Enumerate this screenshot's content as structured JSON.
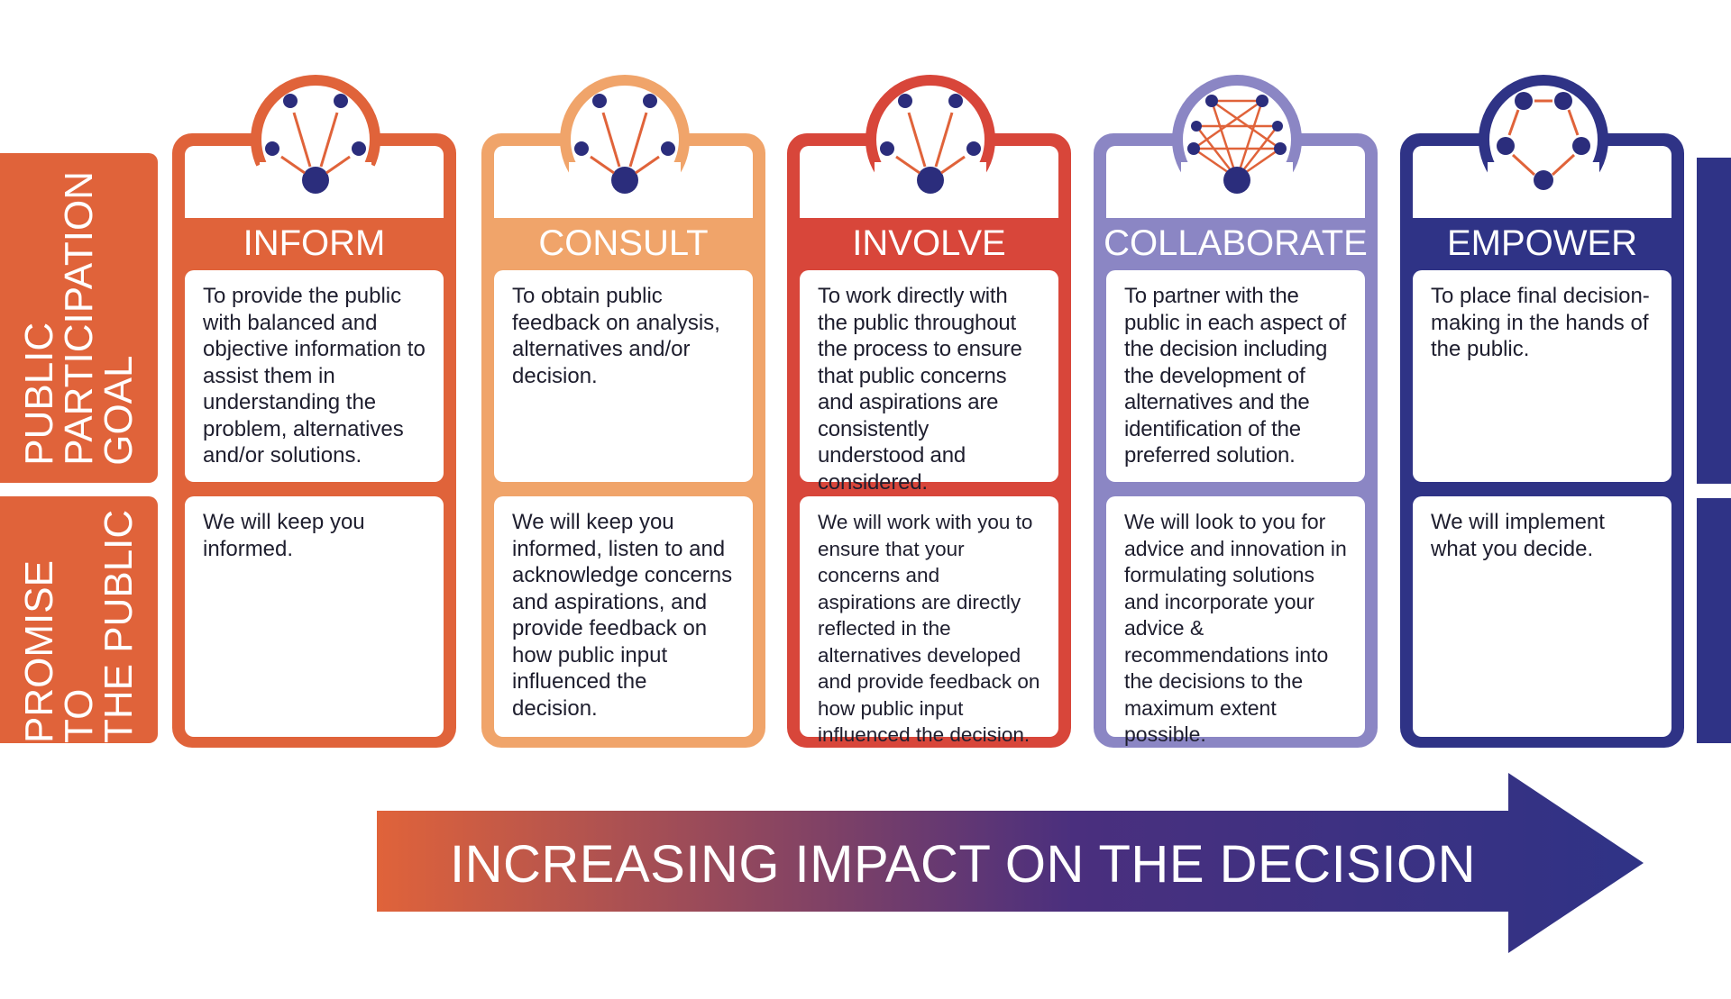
{
  "side_labels": {
    "goal_line1": "PUBLIC",
    "goal_line2": "PARTICIPATION",
    "goal_line3": "GOAL",
    "promise_line1": "PROMISE TO",
    "promise_line2": "THE PUBLIC"
  },
  "columns": [
    {
      "title": "INFORM",
      "color": "#e0633a",
      "goal_text": "To provide the public with balanced and objective information to assist them in understanding the problem, alternatives and/or solutions.",
      "promise_text": "We will keep you informed."
    },
    {
      "title": "CONSULT",
      "color": "#f0a46a",
      "goal_text": "To obtain public feedback on analysis, alternatives and/or decision.",
      "promise_text": "We will keep you informed, listen to and acknowledge concerns and aspirations, and provide feedback on how public input influenced the decision."
    },
    {
      "title": "INVOLVE",
      "color": "#d8463a",
      "goal_text": "To work directly with the public throughout the process to ensure that public concerns and aspirations are consistently understood and considered.",
      "promise_text": "We will work with you to ensure that your concerns and aspirations are directly reflected in the alternatives developed and provide feedback on how public input influenced the decision."
    },
    {
      "title": "COLLABORATE",
      "color": "#8b86c4",
      "goal_text": "To partner with the public in each aspect of the decision including the development of alternatives and the identification of the preferred solution.",
      "promise_text": "We will look to you for advice and innovation in formulating solutions and incorporate your advice & recommendations into the decisions to the maximum extent possible."
    },
    {
      "title": "EMPOWER",
      "color": "#2f3386",
      "goal_text": "To place final decision-making in the hands of the public.",
      "promise_text": "We will implement what you decide."
    }
  ],
  "arrow": {
    "label": "INCREASING IMPACT ON THE DECISION",
    "color_start": "#e0633a",
    "color_end": "#2f3386"
  },
  "colors": {
    "side_label": "#e0633a",
    "dot": "#2b2d7c",
    "arrow_orange": "#e0633a"
  }
}
